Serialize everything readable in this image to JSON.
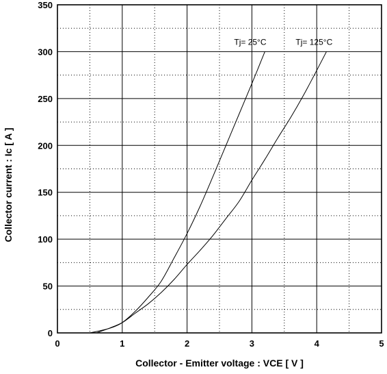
{
  "chart_data": {
    "type": "line",
    "xlabel": "Collector - Emitter voltage  :  VCE  [ V ]",
    "ylabel": "Collector current  :  Ic  [ A ]",
    "xlim": [
      0,
      5
    ],
    "ylim": [
      0,
      350
    ],
    "x_ticks": [
      "0",
      "1",
      "2",
      "3",
      "4",
      "5"
    ],
    "y_ticks": [
      "0",
      "50",
      "100",
      "150",
      "200",
      "250",
      "300",
      "350"
    ],
    "grid": {
      "major": "solid",
      "minor": "dotted",
      "x_minor_step": 0.5,
      "y_minor_step": 25
    },
    "series": [
      {
        "name": "Tj=  25°C",
        "x": [
          0.5,
          0.7,
          0.85,
          1.0,
          1.2,
          1.4,
          1.6,
          1.8,
          2.0,
          2.2,
          2.4,
          2.6,
          2.8,
          3.0,
          3.2
        ],
        "y": [
          0,
          3,
          6,
          11,
          23,
          38,
          55,
          80,
          106,
          135,
          167,
          200,
          233,
          266,
          300
        ]
      },
      {
        "name": "Tj=  125°C",
        "x": [
          0.6,
          0.8,
          1.0,
          1.2,
          1.4,
          1.6,
          1.8,
          2.0,
          2.2,
          2.4,
          2.6,
          2.8,
          3.0,
          3.2,
          3.4,
          3.6,
          3.8,
          4.0,
          4.15
        ],
        "y": [
          0,
          5,
          11,
          21,
          31,
          43,
          57,
          73,
          88,
          104,
          122,
          140,
          163,
          185,
          208,
          230,
          254,
          280,
          300
        ]
      }
    ]
  }
}
